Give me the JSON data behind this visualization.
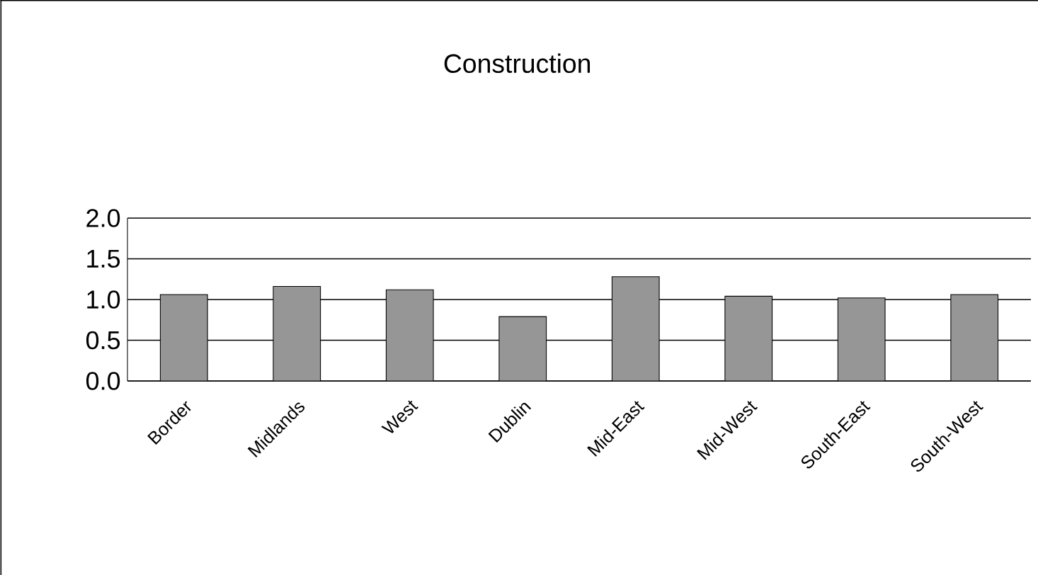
{
  "chart_data": {
    "type": "bar",
    "title": "Construction",
    "categories": [
      "Border",
      "Midlands",
      "West",
      "Dublin",
      "Mid-East",
      "Mid-West",
      "South-East",
      "South-West"
    ],
    "values": [
      1.06,
      1.16,
      1.12,
      0.79,
      1.28,
      1.04,
      1.02,
      1.06
    ],
    "color": "#969696",
    "ylim": [
      0,
      2
    ],
    "yticks": [
      {
        "value": 0,
        "label": "0.0"
      },
      {
        "value": 0.5,
        "label": "0.5"
      },
      {
        "value": 1,
        "label": "1.0"
      },
      {
        "value": 1.5,
        "label": "1.5"
      },
      {
        "value": 2,
        "label": "2.0"
      }
    ],
    "grid": "y"
  }
}
